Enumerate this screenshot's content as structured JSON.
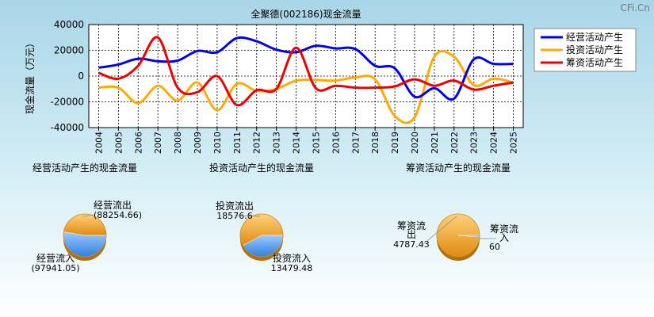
{
  "watermark": "CFi.Cn",
  "main_chart": {
    "type": "line",
    "title": "全聚德(002186)现金流量",
    "ylabel": "现金流量（万元）",
    "ylim": [
      -40000,
      40000
    ],
    "yticks": [
      40000,
      20000,
      0,
      -20000,
      -40000
    ],
    "ytick_labels": [
      "40000",
      "20000",
      "0",
      "-20000",
      "-40000"
    ],
    "categories": [
      "2004",
      "2005",
      "2006",
      "2007",
      "2008",
      "2009",
      "2010",
      "2011",
      "2012",
      "2013",
      "2014",
      "2015",
      "2016",
      "2017",
      "2018",
      "2019",
      "2020",
      "2021",
      "2022",
      "2023",
      "2024",
      "2025"
    ],
    "grid": true,
    "legend_position": "top-right",
    "series": [
      {
        "name": "经营活动产生",
        "color": "#0000ee",
        "values": [
          6500,
          9000,
          13500,
          11500,
          12000,
          19500,
          18500,
          29500,
          27000,
          20500,
          18500,
          23500,
          21500,
          21000,
          8000,
          6000,
          -16000,
          -9500,
          -17500,
          13000,
          9500,
          9500
        ]
      },
      {
        "name": "投资活动产生",
        "color": "#ffaa00",
        "values": [
          -9000,
          -9000,
          -21000,
          -7500,
          -19000,
          -5000,
          -26500,
          -6000,
          -11500,
          -10000,
          -3500,
          -3000,
          -3500,
          -1000,
          -2500,
          -31000,
          -32000,
          15000,
          15000,
          -7000,
          -2000,
          -5000
        ]
      },
      {
        "name": "筹资活动产生",
        "color": "#ee0000",
        "values": [
          2500,
          -2000,
          8000,
          30000,
          -9000,
          -12500,
          0,
          -22500,
          -11000,
          -10000,
          22000,
          -9500,
          -7500,
          -9000,
          -9000,
          -8000,
          -2500,
          -7500,
          -3500,
          -10500,
          -7500,
          -5000
        ]
      }
    ]
  },
  "pies": [
    {
      "title": "经营活动产生的现金流量",
      "type": "pie",
      "slices": [
        {
          "label": "经营流出",
          "value": 88254.66,
          "value_text": "(88254.66)",
          "color": "#f0a020"
        },
        {
          "label": "经营流入",
          "value": 97941.05,
          "value_text": "(97941.05)",
          "color": "#3f8fe6"
        }
      ]
    },
    {
      "title": "投资活动产生的现金流量",
      "type": "pie",
      "slices": [
        {
          "label": "投资流出",
          "value": 18576.6,
          "value_text": "18576.6",
          "color": "#f0a020"
        },
        {
          "label": "投资流入",
          "value": 13479.48,
          "value_text": "13479.48",
          "color": "#3f8fe6"
        }
      ]
    },
    {
      "title": "筹资活动产生的现金流量",
      "type": "pie",
      "slices": [
        {
          "label": "筹资流出",
          "value": 4787.43,
          "value_text": "4787.43",
          "color": "#f0a020"
        },
        {
          "label": "筹资流入",
          "value": 60,
          "value_text": "60",
          "color": "#3f8fe6"
        }
      ]
    }
  ]
}
